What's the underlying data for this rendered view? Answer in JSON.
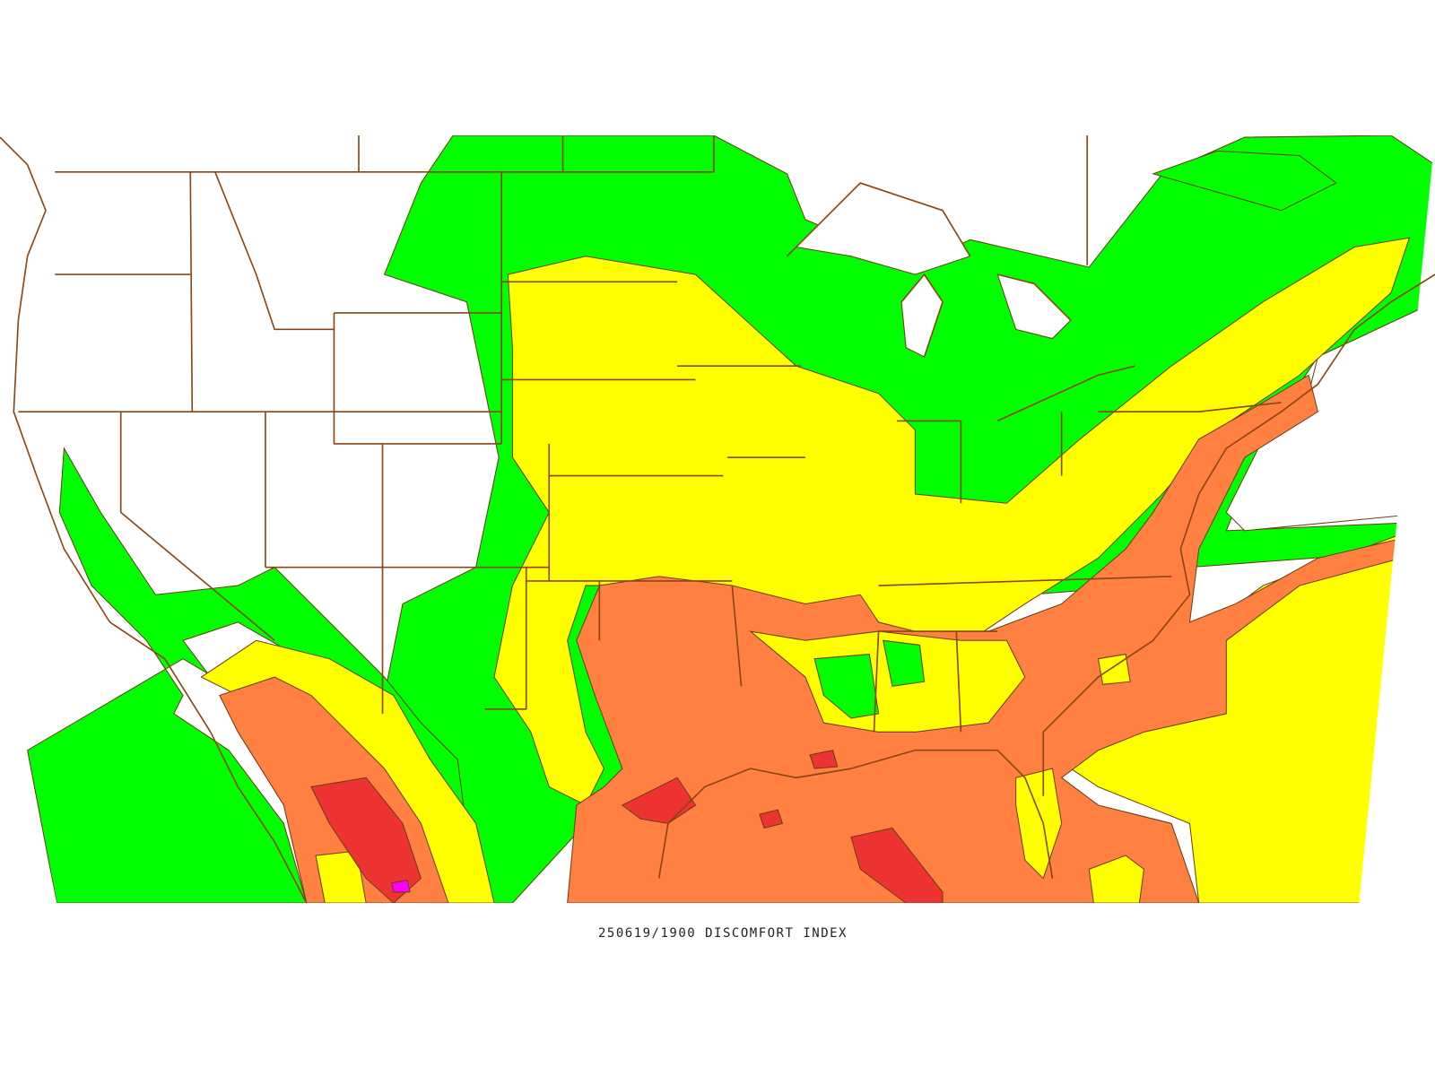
{
  "caption": "250619/1900 DISCOMFORT INDEX"
}
